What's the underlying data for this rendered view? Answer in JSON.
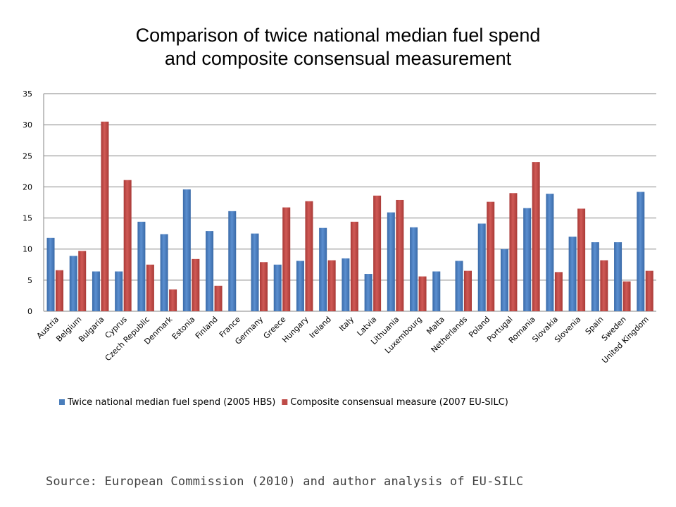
{
  "slide": {
    "title_line1": "Comparison of twice national median fuel spend",
    "title_line2": "and composite consensual measurement",
    "source": "Source: European Commission (2010) and author analysis of EU-SILC"
  },
  "colors": {
    "series_blue": "#4a7ebb",
    "series_red": "#be4b48",
    "grid": "#868686",
    "text": "#000000"
  },
  "chart_data": {
    "type": "bar",
    "title": "Comparison of twice national median fuel spend and composite consensual measurement",
    "xlabel": "",
    "ylabel": "",
    "ylim": [
      0,
      35
    ],
    "yticks": [
      0,
      5,
      10,
      15,
      20,
      25,
      30,
      35
    ],
    "grid": true,
    "legend_position": "bottom",
    "categories": [
      "Austria",
      "Belgium",
      "Bulgaria",
      "Cyprus",
      "Czech Republic",
      "Denmark",
      "Estonia",
      "Finland",
      "France",
      "Germany",
      "Greece",
      "Hungary",
      "Ireland",
      "Italy",
      "Latvia",
      "Lithuania",
      "Luxembourg",
      "Malta",
      "Netherlands",
      "Poland",
      "Portugal",
      "Romania",
      "Slovakia",
      "Slovenia",
      "Spain",
      "Sweden",
      "United Kingdom"
    ],
    "series": [
      {
        "name": "Twice national median fuel spend (2005 HBS)",
        "color": "#4a7ebb",
        "values": [
          11.8,
          8.9,
          6.4,
          6.4,
          14.4,
          12.4,
          19.6,
          12.9,
          16.1,
          12.5,
          7.5,
          8.1,
          13.4,
          8.5,
          6.0,
          15.9,
          13.5,
          6.4,
          8.1,
          14.1,
          10.0,
          16.6,
          18.9,
          12.0,
          11.1,
          11.1,
          19.2
        ]
      },
      {
        "name": "Composite consensual measure (2007 EU-SILC)",
        "color": "#be4b48",
        "values": [
          6.6,
          9.7,
          30.5,
          21.1,
          7.5,
          3.5,
          8.4,
          4.1,
          null,
          7.9,
          16.7,
          17.7,
          8.2,
          14.4,
          18.6,
          17.9,
          5.6,
          null,
          6.5,
          17.6,
          19.0,
          24.0,
          6.3,
          16.5,
          8.2,
          4.8,
          6.5
        ]
      }
    ]
  }
}
